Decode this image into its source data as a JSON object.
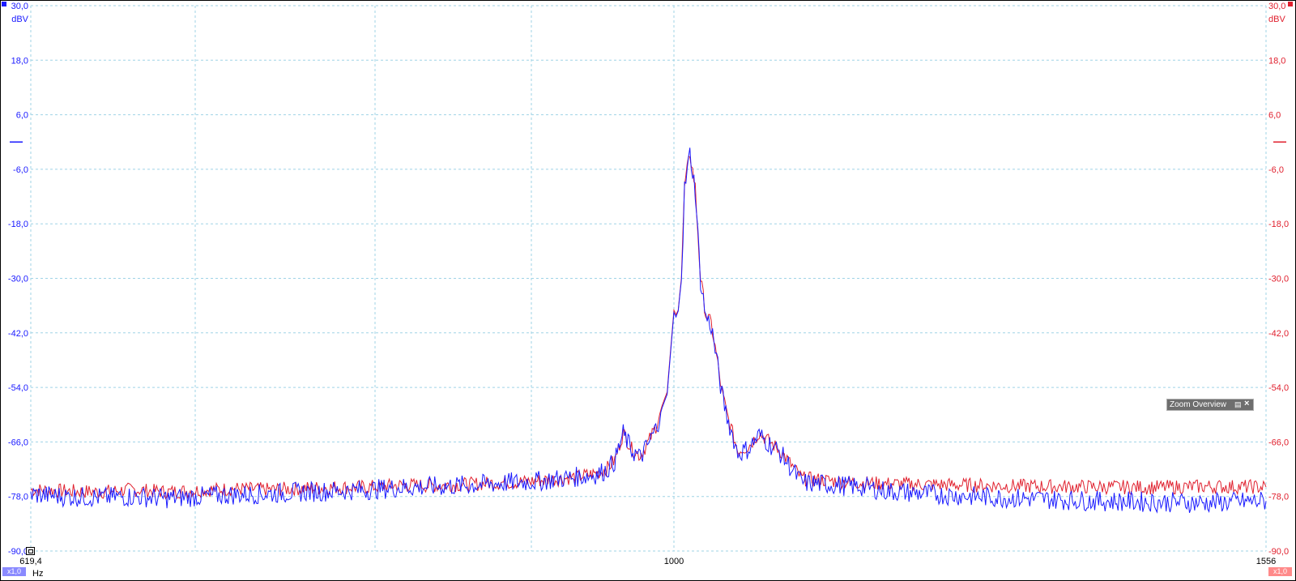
{
  "axes": {
    "left_unit": "dBV",
    "right_unit": "dBV",
    "x_unit": "Hz",
    "left_scale": "x1,0",
    "right_scale": "x1,0",
    "y_tick_labels": [
      "30,0",
      "18,0",
      "6,0",
      "-6,0",
      "-18,0",
      "-30,0",
      "-42,0",
      "-54,0",
      "-66,0",
      "-78,0",
      "-90,0"
    ],
    "x_tick_labels": [
      "619,4",
      "1000",
      "1556"
    ]
  },
  "zoom_overview": {
    "label": "Zoom Overview",
    "pin_icon": "pin-icon",
    "close_icon": "close-icon"
  },
  "colors": {
    "channel_a": "#1a1aff",
    "channel_b": "#e0202e",
    "grid": "#9fd3e6"
  },
  "chart_data": {
    "type": "line",
    "title": "",
    "xlabel": "Hz",
    "ylabel": "dBV",
    "xlim": [
      619.4,
      1556
    ],
    "ylim": [
      -90,
      30
    ],
    "grid": true,
    "legend": "none",
    "series": [
      {
        "color": "#e0202e",
        "x": [
          619.4,
          640,
          660,
          680,
          700,
          720,
          740,
          760,
          780,
          800,
          820,
          840,
          860,
          880,
          900,
          910,
          920,
          930,
          940,
          950,
          955,
          960,
          965,
          970,
          975,
          980,
          985,
          990,
          993,
          996,
          998,
          1000,
          1002,
          1004,
          1007,
          1010,
          1015,
          1020,
          1025,
          1030,
          1035,
          1040,
          1045,
          1050,
          1055,
          1060,
          1070,
          1080,
          1100,
          1120,
          1150,
          1180,
          1200,
          1250,
          1300,
          1350,
          1400,
          1450,
          1500,
          1556
        ],
        "y": [
          -76.5,
          -76.8,
          -77,
          -76.5,
          -77,
          -76.6,
          -76.3,
          -76.5,
          -76.2,
          -76,
          -75.9,
          -75.5,
          -75.6,
          -75.3,
          -74.9,
          -74.8,
          -74.5,
          -74.2,
          -73.8,
          -73.2,
          -72.8,
          -72,
          -70,
          -64,
          -67.5,
          -69,
          -66,
          -62,
          -58,
          -55,
          -46,
          -37,
          -38,
          -37,
          -30,
          -10,
          -2.5,
          -10,
          -30,
          -38,
          -40,
          -47,
          -55,
          -60,
          -64,
          -68,
          -67,
          -64,
          -68,
          -74,
          -74.6,
          -75,
          -75.2,
          -75.4,
          -75.6,
          -75.8,
          -75.9,
          -76,
          -75.8,
          -75.9
        ]
      },
      {
        "color": "#1a1aff",
        "x": [
          619.4,
          640,
          660,
          680,
          700,
          720,
          740,
          760,
          780,
          800,
          820,
          840,
          860,
          880,
          900,
          910,
          920,
          930,
          940,
          950,
          955,
          960,
          965,
          970,
          975,
          980,
          985,
          990,
          993,
          996,
          998,
          1000,
          1002,
          1004,
          1007,
          1010,
          1015,
          1020,
          1025,
          1030,
          1035,
          1040,
          1045,
          1050,
          1055,
          1060,
          1070,
          1080,
          1100,
          1120,
          1150,
          1180,
          1200,
          1250,
          1300,
          1350,
          1400,
          1450,
          1500,
          1556
        ],
        "y": [
          -77.5,
          -78,
          -78.2,
          -78,
          -78.4,
          -78,
          -77.6,
          -77.4,
          -77,
          -76.8,
          -76.5,
          -76,
          -75.8,
          -75.5,
          -75,
          -74.8,
          -74.6,
          -74.2,
          -73.8,
          -73.4,
          -73,
          -72.2,
          -70.2,
          -64.2,
          -67.8,
          -69.5,
          -66.4,
          -62.5,
          -58.5,
          -55.5,
          -46.5,
          -37.5,
          -38.5,
          -37.2,
          -30.5,
          -10.5,
          -2.5,
          -10.5,
          -30.5,
          -38.5,
          -40.5,
          -47.5,
          -55.5,
          -60.5,
          -64.5,
          -68.5,
          -67.5,
          -64.5,
          -68.5,
          -75,
          -75.4,
          -76,
          -76.8,
          -77.6,
          -78.2,
          -78.6,
          -79,
          -79.2,
          -79.4,
          -79
        ]
      }
    ]
  }
}
